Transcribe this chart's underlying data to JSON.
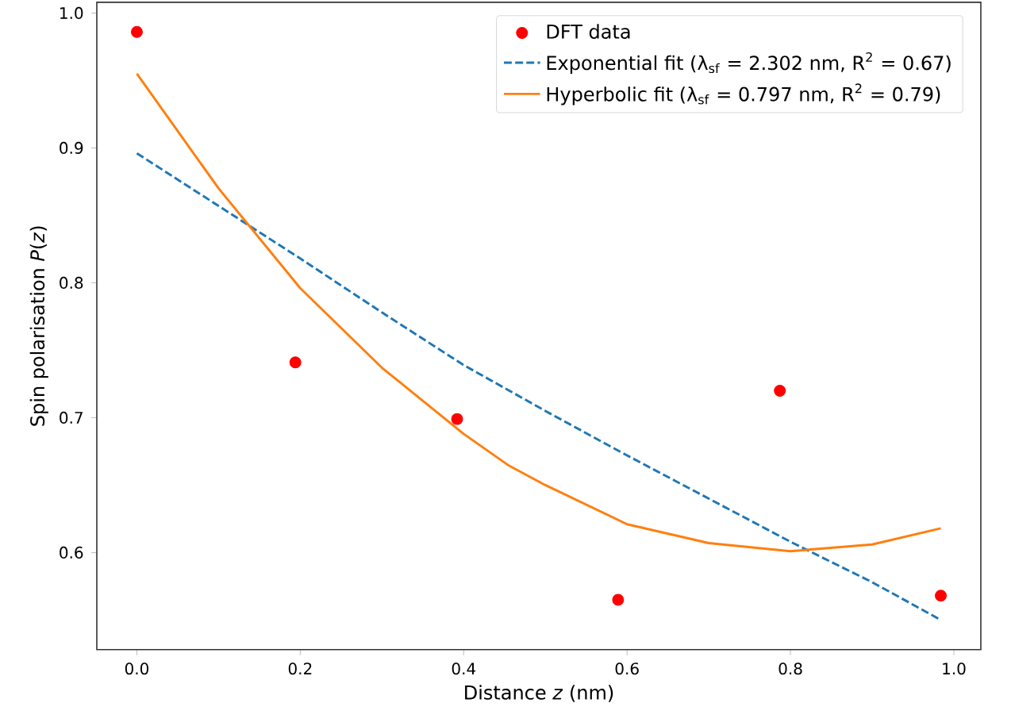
{
  "chart_data": {
    "type": "scatter",
    "xlabel": "Distance *z* (nm)",
    "ylabel": "Spin polarisation *P*(*z*)",
    "xlim": [
      -0.049,
      1.033
    ],
    "ylim": [
      0.528,
      1.008
    ],
    "xticks": [
      {
        "value": 0,
        "label": "0.0"
      },
      0.2,
      0.4,
      0.6,
      0.8,
      {
        "value": 1,
        "label": "1.0"
      }
    ],
    "yticks": [
      0.6,
      0.7,
      0.8,
      0.9,
      {
        "value": 1,
        "label": "1.0"
      }
    ],
    "legend": "top right",
    "series": [
      {
        "name": "DFT data",
        "marker": "circle",
        "color": "#ff0000",
        "x": [
          0,
          0.194,
          0.392,
          0.589,
          0.787,
          0.984
        ],
        "values": [
          0.986,
          0.741,
          0.699,
          0.565,
          0.72,
          0.568
        ]
      },
      {
        "name": "Exponential fit  (λ$_{sf}$ = 2.302 nm,  R$^{2}$ = 0.67)",
        "type": "line",
        "line_style": "dashed",
        "color": "#1f77b4",
        "x": [
          0,
          0.1,
          0.2,
          0.3,
          0.4,
          0.5,
          0.6,
          0.7,
          0.8,
          0.9,
          0.984
        ],
        "values": [
          0.896,
          0.857,
          0.818,
          0.778,
          0.739,
          0.705,
          0.672,
          0.64,
          0.608,
          0.578,
          0.55
        ]
      },
      {
        "name": "Hyperbolic fit (λ$_{sf}$ = 0.797 nm,  R$^{2}$ = 0.79)",
        "type": "line",
        "line_style": "solid",
        "color": "#ff7f0e",
        "x": [
          0,
          0.1,
          0.2,
          0.3,
          0.4,
          0.454,
          0.5,
          0.6,
          0.7,
          0.8,
          0.9,
          0.984
        ],
        "values": [
          0.955,
          0.87,
          0.796,
          0.737,
          0.688,
          0.665,
          0.65,
          0.621,
          0.607,
          0.601,
          0.606,
          0.618
        ]
      }
    ]
  }
}
